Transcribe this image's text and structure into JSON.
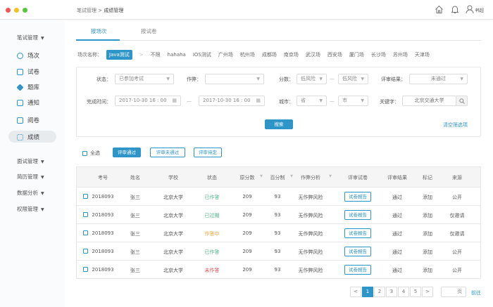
{
  "colors": {
    "accent": "#2e95c8",
    "done": "#4cb58a",
    "in_progress": "#f0a030",
    "not_done": "#e05050"
  },
  "breadcrumb": [
    "笔试管理",
    "成绩管理"
  ],
  "breadcrumb_sep": ">",
  "header": {
    "user": "韩超",
    "icons": [
      "home-icon",
      "bell-icon",
      "user-icon"
    ]
  },
  "sidebar": {
    "group1": "笔试管理",
    "items": [
      {
        "label": "场次",
        "icon": "target-icon"
      },
      {
        "label": "试卷",
        "icon": "document-icon"
      },
      {
        "label": "题库",
        "icon": "stack-icon"
      },
      {
        "label": "通知",
        "icon": "message-icon"
      },
      {
        "label": "阅卷",
        "icon": "edit-icon"
      },
      {
        "label": "成绩",
        "icon": "grid-icon",
        "active": true
      }
    ],
    "groups": [
      "面试管理",
      "简历管理",
      "数据分析",
      "权限管理"
    ]
  },
  "tabs": [
    {
      "label": "按场次",
      "active": true
    },
    {
      "label": "按试卷"
    }
  ],
  "session_filter": {
    "label": "场次名称：",
    "selected": "Java测试",
    "sep": ">",
    "options": [
      "不限",
      "hahaha",
      "IOS测试",
      "广州场",
      "杭州场",
      "成都场",
      "南京场",
      "武汉场",
      "西安场",
      "厦门场",
      "长沙场",
      "苏州场",
      "天津场"
    ]
  },
  "filters": {
    "status_label": "状态：",
    "status_value": "已参加考试",
    "cheat_label": "作弊：",
    "cheat_value": "",
    "score_label": "分数：",
    "score_from": "低风险",
    "score_to": "低风险",
    "result_label": "评审结果：",
    "result_value": "未通过",
    "time_label": "完成时间：",
    "time_from": "2017-10-30  16 : 00",
    "time_to": "2017-10-30  16 : 00",
    "city_label": "城市：",
    "province": "省",
    "city": "市",
    "keyword_label": "关键字：",
    "keyword_placeholder": "北京交通大学",
    "dash": "—",
    "search_button": "搜索",
    "clear_link": "清空筛选项"
  },
  "actions": {
    "select_all": "全选",
    "pass": "评审通过",
    "fail": "评审未通过",
    "pending": "评审待定"
  },
  "table": {
    "headers": [
      "考号",
      "姓名",
      "学校",
      "状态",
      "原分数",
      "百分制",
      "作弊分析",
      "评审试卷",
      "评审结果",
      "标记",
      "来源"
    ],
    "rows": [
      {
        "id": "2018093",
        "name": "张三",
        "school": "北京大学",
        "status": "已作答",
        "status_type": "done",
        "raw": "209",
        "pct": "93",
        "cheat": "无作弊风险",
        "report": "试卷报告",
        "result": "通过",
        "mark": "添加",
        "source": "公开"
      },
      {
        "id": "2018093",
        "name": "张三",
        "school": "北京大学",
        "status": "已过期",
        "status_type": "done",
        "raw": "209",
        "pct": "93",
        "cheat": "无作弊风险",
        "report": "试卷报告",
        "result": "通过",
        "mark": "添加",
        "source": "仅邀请"
      },
      {
        "id": "2018093",
        "name": "张三",
        "school": "北京大学",
        "status": "作答中",
        "status_type": "in_progress",
        "raw": "209",
        "pct": "93",
        "cheat": "无作弊风险",
        "report": "试卷报告",
        "result": "通过",
        "mark": "添加",
        "source": "仅邀请"
      },
      {
        "id": "2018093",
        "name": "张三",
        "school": "北京大学",
        "status": "已作答",
        "status_type": "done",
        "raw": "209",
        "pct": "93",
        "cheat": "无作弊风险",
        "report": "试卷报告",
        "result": "通过",
        "mark": "添加",
        "source": "公开"
      },
      {
        "id": "2018093",
        "name": "张三",
        "school": "北京大学",
        "status": "未作答",
        "status_type": "not_done",
        "raw": "209",
        "pct": "93",
        "cheat": "无作弊风险",
        "report": "试卷报告",
        "result": "通过",
        "mark": "添加",
        "source": "公开"
      }
    ]
  },
  "pagination": {
    "prev": "<",
    "pages": [
      "1",
      "2",
      "3",
      "4",
      "5"
    ],
    "current": "1",
    "next": ">",
    "page_unit": "页",
    "go": "前往"
  }
}
